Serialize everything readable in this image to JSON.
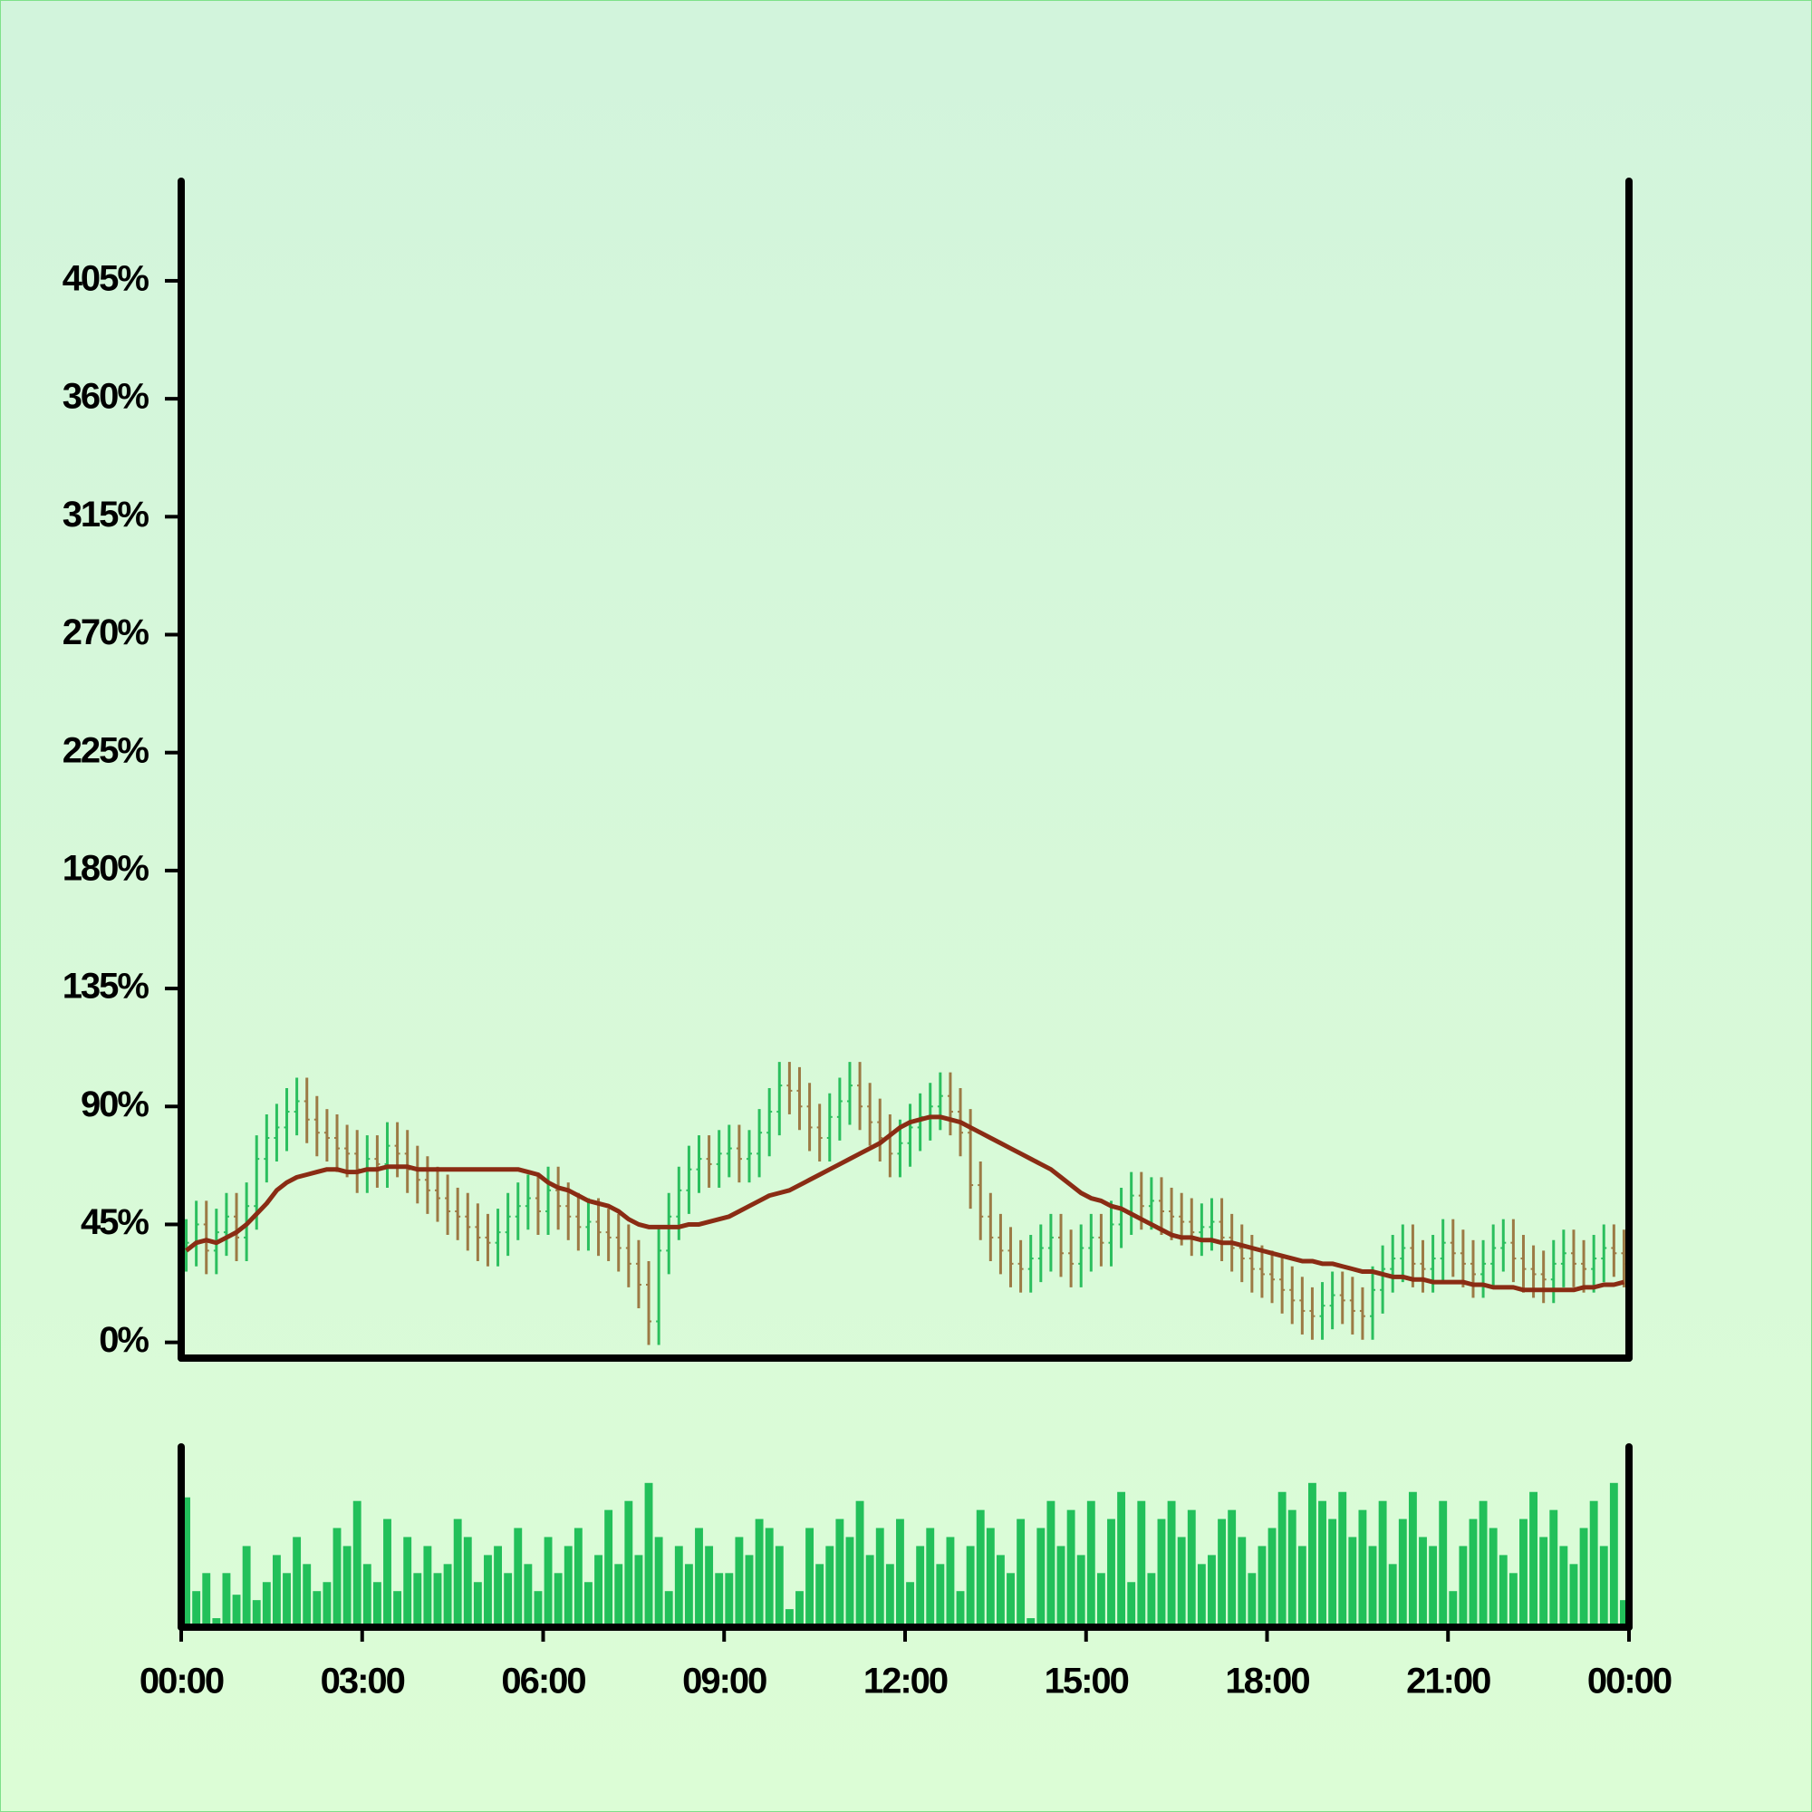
{
  "chart_data": {
    "type": "ohlc",
    "x": [
      0,
      10,
      20,
      30,
      40,
      50,
      60,
      70,
      80,
      90,
      100,
      110,
      120,
      130,
      140,
      150,
      160,
      170,
      180,
      190,
      200,
      210,
      220,
      230,
      240,
      250,
      260,
      270,
      280,
      290,
      300,
      310,
      320,
      330,
      340,
      350,
      360,
      370,
      380,
      390,
      400,
      410,
      420,
      430,
      440,
      450,
      460,
      470,
      480,
      490,
      500,
      510,
      520,
      530,
      540,
      550,
      560,
      570,
      580,
      590,
      600,
      610,
      620,
      630,
      640,
      650,
      660,
      670,
      680,
      690,
      700,
      710,
      720,
      730,
      740,
      750,
      760,
      770,
      780,
      790,
      800,
      810,
      820,
      830,
      840,
      850,
      860,
      870,
      880,
      890,
      900,
      910,
      920,
      930,
      940,
      950,
      960,
      970,
      980,
      990,
      1000,
      1010,
      1020,
      1030,
      1040,
      1050,
      1060,
      1070,
      1080,
      1090,
      1100,
      1110,
      1120,
      1130,
      1140,
      1150,
      1160,
      1170,
      1180,
      1190,
      1200,
      1210,
      1220,
      1230,
      1240,
      1250,
      1260,
      1270,
      1280,
      1290,
      1300,
      1310,
      1320,
      1330,
      1340,
      1350,
      1360,
      1370,
      1380,
      1390,
      1400,
      1410,
      1420,
      1430
    ],
    "open": [
      36,
      38,
      45,
      35,
      42,
      48,
      40,
      52,
      70,
      78,
      82,
      88,
      92,
      85,
      80,
      78,
      74,
      72,
      66,
      70,
      68,
      75,
      72,
      66,
      62,
      58,
      55,
      50,
      48,
      44,
      40,
      38,
      42,
      48,
      52,
      55,
      50,
      58,
      52,
      48,
      44,
      46,
      42,
      40,
      36,
      30,
      22,
      8,
      35,
      48,
      58,
      66,
      70,
      68,
      72,
      74,
      70,
      72,
      80,
      88,
      98,
      96,
      90,
      82,
      78,
      86,
      92,
      98,
      90,
      84,
      78,
      72,
      76,
      82,
      86,
      90,
      94,
      88,
      80,
      60,
      48,
      40,
      35,
      30,
      28,
      32,
      36,
      40,
      34,
      30,
      36,
      40,
      38,
      45,
      50,
      56,
      52,
      54,
      50,
      48,
      46,
      42,
      44,
      46,
      40,
      36,
      32,
      28,
      26,
      24,
      20,
      16,
      12,
      10,
      14,
      18,
      16,
      12,
      10,
      20,
      28,
      32,
      36,
      30,
      28,
      32,
      38,
      34,
      30,
      26,
      30,
      36,
      38,
      32,
      28,
      26,
      24,
      30,
      34,
      30,
      28,
      32,
      36,
      34
    ],
    "high": [
      47,
      54,
      54,
      51,
      57,
      57,
      61,
      79,
      87,
      91,
      97,
      101,
      101,
      94,
      89,
      87,
      83,
      81,
      79,
      79,
      84,
      84,
      81,
      75,
      71,
      67,
      64,
      59,
      57,
      53,
      49,
      51,
      57,
      61,
      64,
      64,
      67,
      67,
      61,
      57,
      55,
      55,
      51,
      49,
      45,
      39,
      31,
      44,
      57,
      67,
      75,
      79,
      79,
      81,
      83,
      83,
      81,
      89,
      97,
      107,
      107,
      105,
      99,
      91,
      95,
      101,
      107,
      107,
      99,
      93,
      87,
      85,
      91,
      95,
      99,
      103,
      103,
      97,
      89,
      69,
      57,
      49,
      44,
      39,
      41,
      45,
      49,
      49,
      43,
      45,
      49,
      49,
      54,
      59,
      65,
      65,
      63,
      63,
      59,
      57,
      55,
      53,
      55,
      55,
      49,
      45,
      41,
      37,
      35,
      33,
      29,
      25,
      21,
      23,
      27,
      27,
      25,
      21,
      29,
      37,
      41,
      45,
      45,
      39,
      41,
      47,
      47,
      43,
      39,
      39,
      45,
      47,
      47,
      41,
      37,
      35,
      39,
      43,
      43,
      39,
      41,
      45,
      45,
      43
    ],
    "low": [
      27,
      29,
      26,
      26,
      33,
      31,
      31,
      43,
      61,
      69,
      73,
      79,
      76,
      71,
      69,
      65,
      63,
      57,
      57,
      59,
      59,
      63,
      57,
      53,
      49,
      46,
      41,
      39,
      35,
      31,
      29,
      29,
      33,
      39,
      43,
      41,
      41,
      43,
      39,
      35,
      35,
      33,
      31,
      27,
      21,
      13,
      -1,
      -1,
      26,
      39,
      49,
      57,
      59,
      59,
      63,
      61,
      61,
      63,
      71,
      79,
      87,
      81,
      73,
      69,
      69,
      77,
      83,
      81,
      75,
      69,
      63,
      63,
      67,
      73,
      77,
      81,
      79,
      71,
      51,
      39,
      31,
      26,
      21,
      19,
      19,
      23,
      27,
      25,
      21,
      21,
      27,
      29,
      29,
      36,
      41,
      43,
      43,
      41,
      39,
      37,
      33,
      33,
      35,
      31,
      27,
      23,
      19,
      17,
      15,
      11,
      7,
      3,
      1,
      1,
      5,
      7,
      3,
      1,
      1,
      11,
      19,
      23,
      21,
      19,
      19,
      23,
      25,
      21,
      17,
      17,
      21,
      27,
      23,
      19,
      17,
      15,
      15,
      21,
      21,
      19,
      19,
      23,
      25,
      21
    ],
    "close": [
      38,
      45,
      35,
      42,
      48,
      40,
      52,
      70,
      78,
      82,
      88,
      92,
      85,
      80,
      78,
      74,
      72,
      66,
      70,
      68,
      75,
      72,
      66,
      62,
      58,
      55,
      50,
      48,
      44,
      40,
      38,
      42,
      48,
      52,
      55,
      50,
      58,
      52,
      48,
      44,
      46,
      42,
      40,
      36,
      30,
      22,
      8,
      35,
      48,
      58,
      66,
      70,
      68,
      72,
      74,
      70,
      72,
      80,
      88,
      98,
      96,
      90,
      82,
      78,
      86,
      92,
      98,
      90,
      84,
      78,
      72,
      76,
      82,
      86,
      90,
      94,
      88,
      80,
      60,
      48,
      40,
      35,
      30,
      28,
      32,
      36,
      40,
      34,
      30,
      36,
      40,
      38,
      45,
      50,
      56,
      52,
      54,
      50,
      48,
      46,
      42,
      44,
      46,
      40,
      36,
      32,
      28,
      26,
      24,
      20,
      16,
      12,
      10,
      14,
      18,
      16,
      12,
      10,
      20,
      28,
      32,
      36,
      30,
      28,
      32,
      38,
      34,
      30,
      26,
      30,
      36,
      38,
      32,
      28,
      26,
      24,
      30,
      34,
      30,
      28,
      32,
      36,
      34,
      30
    ],
    "moving_average": [
      35,
      38,
      39,
      38,
      40,
      42,
      45,
      49,
      53,
      58,
      61,
      63,
      64,
      65,
      66,
      66,
      65,
      65,
      66,
      66,
      67,
      67,
      67,
      66,
      66,
      66,
      66,
      66,
      66,
      66,
      66,
      66,
      66,
      66,
      65,
      64,
      61,
      59,
      58,
      56,
      54,
      53,
      52,
      50,
      47,
      45,
      44,
      44,
      44,
      44,
      45,
      45,
      46,
      47,
      48,
      50,
      52,
      54,
      56,
      57,
      58,
      60,
      62,
      64,
      66,
      68,
      70,
      72,
      74,
      76,
      79,
      82,
      84,
      85,
      86,
      86,
      85,
      84,
      82,
      80,
      78,
      76,
      74,
      72,
      70,
      68,
      66,
      63,
      60,
      57,
      55,
      54,
      52,
      51,
      49,
      47,
      45,
      43,
      41,
      40,
      40,
      39,
      39,
      38,
      38,
      37,
      36,
      35,
      34,
      33,
      32,
      31,
      31,
      30,
      30,
      29,
      28,
      27,
      27,
      26,
      25,
      25,
      24,
      24,
      23,
      23,
      23,
      23,
      22,
      22,
      21,
      21,
      21,
      20,
      20,
      20,
      20,
      20,
      20,
      21,
      21,
      22,
      22,
      23
    ],
    "volume": [
      72,
      20,
      30,
      5,
      30,
      18,
      45,
      15,
      25,
      40,
      30,
      50,
      35,
      20,
      25,
      55,
      45,
      70,
      35,
      25,
      60,
      20,
      50,
      30,
      45,
      30,
      35,
      60,
      50,
      25,
      40,
      45,
      30,
      55,
      35,
      20,
      50,
      30,
      45,
      55,
      25,
      40,
      65,
      35,
      70,
      40,
      80,
      50,
      20,
      45,
      35,
      55,
      45,
      30,
      30,
      50,
      40,
      60,
      55,
      45,
      10,
      20,
      55,
      35,
      45,
      60,
      50,
      70,
      40,
      55,
      35,
      60,
      25,
      45,
      55,
      35,
      50,
      20,
      45,
      65,
      55,
      40,
      30,
      60,
      5,
      55,
      70,
      45,
      65,
      40,
      70,
      30,
      60,
      75,
      25,
      70,
      30,
      60,
      70,
      50,
      65,
      35,
      40,
      60,
      65,
      50,
      30,
      45,
      55,
      75,
      65,
      45,
      80,
      70,
      60,
      75,
      50,
      65,
      45,
      70,
      35,
      60,
      75,
      50,
      45,
      70,
      20,
      45,
      60,
      70,
      55,
      40,
      30,
      60,
      75,
      50,
      65,
      45,
      35,
      55,
      70,
      45,
      80,
      15
    ],
    "up_color": "#2bbf5e",
    "down_color": "#9c7a45",
    "ma_color": "#8a2c14",
    "volume_color": "#22c05a",
    "xlim": [
      0,
      1440
    ],
    "xticks": [
      {
        "value": 0,
        "label": "00:00"
      },
      {
        "value": 180,
        "label": "03:00"
      },
      {
        "value": 360,
        "label": "06:00"
      },
      {
        "value": 540,
        "label": "09:00"
      },
      {
        "value": 720,
        "label": "12:00"
      },
      {
        "value": 900,
        "label": "15:00"
      },
      {
        "value": 1080,
        "label": "18:00"
      },
      {
        "value": 1260,
        "label": "21:00"
      },
      {
        "value": 1440,
        "label": "00:00"
      }
    ],
    "ylim": [
      -6,
      443
    ],
    "yticks": [
      {
        "value": 0,
        "label": "0%"
      },
      {
        "value": 45,
        "label": "45%"
      },
      {
        "value": 90,
        "label": "90%"
      },
      {
        "value": 135,
        "label": "135%"
      },
      {
        "value": 180,
        "label": "180%"
      },
      {
        "value": 225,
        "label": "225%"
      },
      {
        "value": 270,
        "label": "270%"
      },
      {
        "value": 315,
        "label": "315%"
      },
      {
        "value": 360,
        "label": "360%"
      },
      {
        "value": 405,
        "label": "405%"
      }
    ],
    "volume_ylim": [
      0,
      100
    ]
  }
}
